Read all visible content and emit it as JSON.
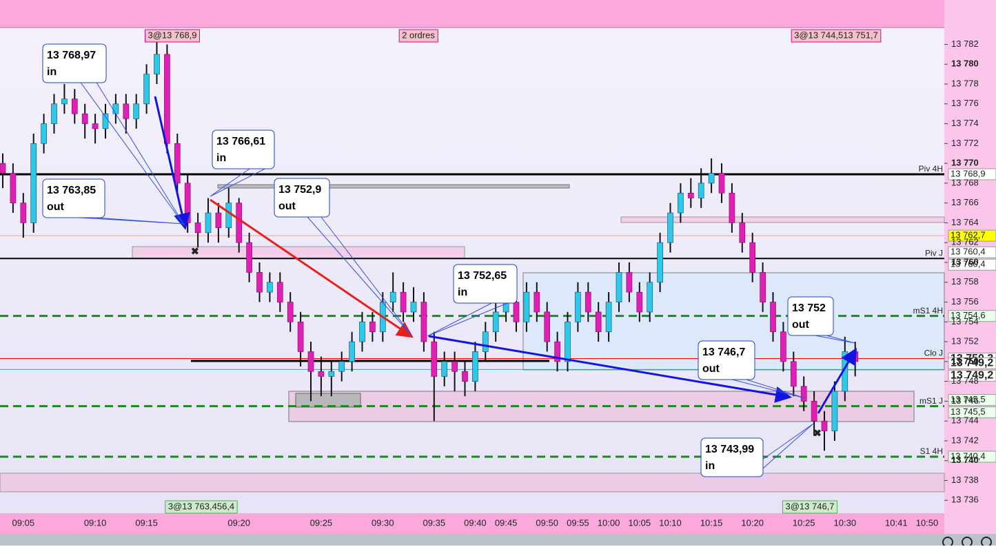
{
  "chart_data": {
    "type": "candlestick",
    "categories": [
      null,
      null,
      "09:05",
      null,
      null,
      null,
      null,
      null,
      null,
      "09:10",
      null,
      null,
      null,
      null,
      "09:15",
      null,
      null,
      null,
      null,
      null,
      null,
      null,
      null,
      "09:20",
      null,
      null,
      null,
      null,
      null,
      null,
      null,
      "09:25",
      null,
      null,
      null,
      null,
      null,
      "09:30",
      null,
      null,
      null,
      null,
      "09:35",
      null,
      null,
      null,
      "09:40",
      null,
      null,
      "09:45",
      null,
      null,
      null,
      "09:50",
      null,
      null,
      "09:55",
      null,
      null,
      "10:00",
      null,
      null,
      "10:05",
      null,
      null,
      "10:10",
      null,
      null,
      null,
      "10:15",
      null,
      null,
      null,
      "10:20",
      null,
      null,
      null,
      null,
      "10:25",
      null,
      null,
      null,
      "10:30",
      null,
      null,
      null,
      null,
      "10:41",
      null,
      null,
      "10:50"
    ],
    "candles": [
      [
        13770,
        13771,
        13767.5,
        13769
      ],
      [
        13769,
        13770,
        13765,
        13766
      ],
      [
        13766,
        13767,
        13762.5,
        13764
      ],
      [
        13764,
        13773,
        13763,
        13772
      ],
      [
        13772,
        13775,
        13771,
        13774
      ],
      [
        13774,
        13777,
        13773,
        13776
      ],
      [
        13776,
        13778,
        13775,
        13776.5
      ],
      [
        13776.5,
        13777.5,
        13774,
        13775
      ],
      [
        13775,
        13776,
        13772.5,
        13774
      ],
      [
        13774,
        13775,
        13772,
        13773.5
      ],
      [
        13773.5,
        13776,
        13772.5,
        13775
      ],
      [
        13775,
        13777,
        13774,
        13776
      ],
      [
        13776,
        13777,
        13773,
        13774.5
      ],
      [
        13774.5,
        13777,
        13773.5,
        13776
      ],
      [
        13776,
        13780,
        13775,
        13779
      ],
      [
        13779,
        13783.5,
        13778,
        13781
      ],
      [
        13781,
        13782,
        13771,
        13772
      ],
      [
        13772,
        13773,
        13767,
        13768
      ],
      [
        13768,
        13769,
        13763,
        13764
      ],
      [
        13764,
        13765,
        13761.5,
        13763
      ],
      [
        13763,
        13766.5,
        13762,
        13765
      ],
      [
        13765,
        13766,
        13762,
        13763.5
      ],
      [
        13763.5,
        13767.5,
        13762.5,
        13766
      ],
      [
        13766,
        13766.5,
        13761,
        13762
      ],
      [
        13762,
        13763,
        13758,
        13759
      ],
      [
        13759,
        13760,
        13756,
        13757
      ],
      [
        13757,
        13759,
        13756,
        13758
      ],
      [
        13758,
        13759,
        13755,
        13756
      ],
      [
        13756,
        13757,
        13753,
        13754
      ],
      [
        13754,
        13755,
        13749.5,
        13751
      ],
      [
        13751,
        13752,
        13746,
        13749
      ],
      [
        13749,
        13750.5,
        13746.5,
        13748.5
      ],
      [
        13748.5,
        13750,
        13746.5,
        13749
      ],
      [
        13749,
        13751,
        13748,
        13750
      ],
      [
        13750,
        13753,
        13749,
        13752
      ],
      [
        13752,
        13755,
        13751,
        13754
      ],
      [
        13754,
        13755,
        13752,
        13753
      ],
      [
        13753,
        13757,
        13752,
        13756
      ],
      [
        13756,
        13759,
        13755,
        13757
      ],
      [
        13757,
        13758,
        13754,
        13755
      ],
      [
        13755,
        13757.5,
        13754,
        13756
      ],
      [
        13756,
        13757,
        13751,
        13752
      ],
      [
        13752,
        13753,
        13744,
        13748.5
      ],
      [
        13748.5,
        13751,
        13747.5,
        13750
      ],
      [
        13750,
        13751,
        13747,
        13749
      ],
      [
        13749,
        13750,
        13746.5,
        13748
      ],
      [
        13748,
        13752,
        13747,
        13751
      ],
      [
        13751,
        13754,
        13750,
        13753
      ],
      [
        13753,
        13756,
        13752,
        13755
      ],
      [
        13755,
        13757,
        13754,
        13756
      ],
      [
        13756,
        13757,
        13753,
        13754
      ],
      [
        13754,
        13758,
        13753,
        13757
      ],
      [
        13757,
        13758,
        13754,
        13755
      ],
      [
        13755,
        13756,
        13751,
        13752
      ],
      [
        13752,
        13753,
        13749,
        13750
      ],
      [
        13750,
        13755,
        13749,
        13754
      ],
      [
        13754,
        13758,
        13753,
        13757
      ],
      [
        13757,
        13758,
        13754,
        13755
      ],
      [
        13755,
        13756,
        13752,
        13753
      ],
      [
        13753,
        13757,
        13752,
        13756
      ],
      [
        13756,
        13760,
        13755,
        13759
      ],
      [
        13759,
        13760,
        13756,
        13757
      ],
      [
        13757,
        13758,
        13754,
        13755
      ],
      [
        13755,
        13759,
        13754,
        13758
      ],
      [
        13758,
        13763,
        13757,
        13762
      ],
      [
        13762,
        13766,
        13761,
        13765
      ],
      [
        13765,
        13768,
        13764,
        13767
      ],
      [
        13767,
        13768.5,
        13765.5,
        13766.5
      ],
      [
        13766.5,
        13769.5,
        13765.5,
        13768
      ],
      [
        13768,
        13770.5,
        13767,
        13769
      ],
      [
        13769,
        13770,
        13766,
        13767
      ],
      [
        13767,
        13768,
        13763,
        13764
      ],
      [
        13764,
        13765,
        13761,
        13762
      ],
      [
        13762,
        13763,
        13758,
        13759
      ],
      [
        13759,
        13760,
        13755,
        13756
      ],
      [
        13756,
        13757,
        13752,
        13753
      ],
      [
        13753,
        13754,
        13749,
        13750
      ],
      [
        13750,
        13751,
        13746.5,
        13747.5
      ],
      [
        13747.5,
        13748.5,
        13745,
        13746
      ],
      [
        13746,
        13747,
        13742.5,
        13744
      ],
      [
        13744,
        13745,
        13741,
        13743
      ],
      [
        13743,
        13748,
        13742,
        13747
      ],
      [
        13747,
        13752.5,
        13746,
        13751
      ],
      [
        13751,
        13752,
        13748.5,
        13750
      ],
      null,
      null,
      null,
      null,
      null,
      null,
      null
    ],
    "up_color": "#2ec8ea",
    "down_color": "#e020b4",
    "ylim": [
      13734.7,
      13783.7
    ],
    "yticks": [
      {
        "value": 13736,
        "label": "13 736"
      },
      {
        "value": 13738,
        "label": "13 738"
      },
      {
        "value": 13740,
        "label": "13 740"
      },
      {
        "value": 13742,
        "label": "13 742"
      },
      {
        "value": 13744,
        "label": "13 744"
      },
      {
        "value": 13746,
        "label": "13 746"
      },
      {
        "value": 13748,
        "label": "13 748"
      },
      {
        "value": 13750,
        "label": "13 750"
      },
      {
        "value": 13752,
        "label": "13 752"
      },
      {
        "value": 13754,
        "label": "13 754"
      },
      {
        "value": 13756,
        "label": "13 756"
      },
      {
        "value": 13758,
        "label": "13 758"
      },
      {
        "value": 13760,
        "label": "13 760"
      },
      {
        "value": 13762,
        "label": "13 762"
      },
      {
        "value": 13764,
        "label": "13 764"
      },
      {
        "value": 13766,
        "label": "13 766"
      },
      {
        "value": 13768,
        "label": "13 768"
      },
      {
        "value": 13770,
        "label": "13 770"
      },
      {
        "value": 13772,
        "label": "13 772"
      },
      {
        "value": 13774,
        "label": "13 774"
      },
      {
        "value": 13776,
        "label": "13 776"
      },
      {
        "value": 13778,
        "label": "13 778"
      },
      {
        "value": 13780,
        "label": "13 780"
      },
      {
        "value": 13782,
        "label": "13 782"
      }
    ],
    "levels": [
      {
        "name": "Piv 4H",
        "value": 13768.9,
        "tags": [
          "13 768,9"
        ],
        "color": "#000000",
        "style": "thick",
        "tag_bg": "#ffffff",
        "tag_color": "#222222"
      },
      {
        "value": 13762.7,
        "tags": [
          "13 762,7"
        ],
        "color": "#f0a0a0",
        "style": "thin",
        "tag_bg": "#ffff00",
        "tag_color": "#222222"
      },
      {
        "name": "Piv J",
        "value": 13760.4,
        "tags": [
          "13 760,4",
          "13 760,4"
        ],
        "color": "#000000",
        "style": "medium",
        "tag_bg": "#ffffff",
        "tag_color": "#222222"
      },
      {
        "name": "mS1 4H",
        "value": 13754.6,
        "tags": [
          "13 754,6"
        ],
        "color": "#1a8a1a",
        "style": "dashed",
        "tag_bg": "#eaffea",
        "tag_color": "#1a6a1a"
      },
      {
        "name": "Clo J",
        "value": 13750.3,
        "tags": [
          "13 750,3"
        ],
        "color": "#ff0000",
        "style": "thin",
        "tag_bg": "#ffffff",
        "tag_color": "#2040e0"
      },
      {
        "value": 13749.2,
        "tags": [
          "13 749,2",
          "13 749,2"
        ],
        "color": "#40a0a0",
        "style": "thin",
        "tag_bg": "#ffffff",
        "tag_color": "#e01030"
      },
      {
        "name": "mS1 J",
        "value": 13745.5,
        "tags": [
          "13 745,5",
          "13 745,5"
        ],
        "color": "#1a8a1a",
        "style": "dashed",
        "tag_bg": "#eaffea",
        "tag_color": "#1a6a1a"
      },
      {
        "name": "S1 4H",
        "value": 13740.4,
        "tags": [
          "13 740,4"
        ],
        "color": "#1a8a1a",
        "style": "dashed",
        "tag_bg": "#eaffea",
        "tag_color": "#1a6a1a"
      }
    ],
    "top_labels": [
      "3@13 768,9",
      "2 ordres",
      "3@13 744,513 751,7"
    ],
    "bottom_labels": [
      "3@13 763,456,4",
      "3@13 746,7"
    ],
    "annotations": [
      [
        "13 768,97",
        "in"
      ],
      [
        "13 766,61",
        "in"
      ],
      [
        "13 763,85",
        "out"
      ],
      [
        "13 752,9",
        "out"
      ],
      [
        "13 752,65",
        "in"
      ],
      [
        "13 752",
        "out"
      ],
      [
        "13 746,7",
        "out"
      ],
      [
        "13 743,99",
        "in"
      ]
    ]
  }
}
